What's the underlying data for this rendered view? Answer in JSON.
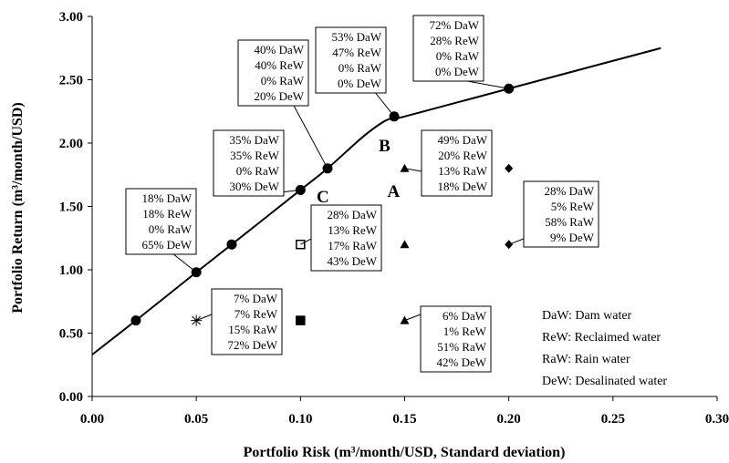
{
  "chart_data": {
    "type": "scatter",
    "xlabel": "Portfolio Risk (m³/month/USD, Standard deviation)",
    "ylabel": "Portfolio Return (m³/month/USD)",
    "xlim": [
      0,
      0.3
    ],
    "ylim": [
      0,
      3.0
    ],
    "x_ticks": [
      "0.00",
      "0.05",
      "0.10",
      "0.15",
      "0.20",
      "0.25",
      "0.30"
    ],
    "y_ticks": [
      "0.00",
      "0.50",
      "1.00",
      "1.50",
      "2.00",
      "2.50",
      "3.00"
    ],
    "frontier_line": {
      "x": [
        0.0,
        0.021,
        0.05,
        0.067,
        0.1,
        0.113,
        0.13,
        0.14,
        0.145,
        0.15,
        0.2,
        0.273
      ],
      "y": [
        0.33,
        0.6,
        0.98,
        1.2,
        1.63,
        1.8,
        2.05,
        2.17,
        2.2,
        2.21,
        2.43,
        2.75
      ]
    },
    "frontier_points": {
      "x": [
        0.021,
        0.05,
        0.067,
        0.1,
        0.113,
        0.145,
        0.2
      ],
      "y": [
        0.6,
        0.98,
        1.2,
        1.63,
        1.8,
        2.21,
        2.43
      ]
    },
    "marker_series": [
      {
        "marker": "square",
        "x": [
          0.1,
          0.1
        ],
        "y": [
          1.2,
          0.6
        ],
        "filled": [
          false,
          true
        ]
      },
      {
        "marker": "triangle",
        "x": [
          0.15,
          0.15,
          0.15
        ],
        "y": [
          1.8,
          1.2,
          0.6
        ]
      },
      {
        "marker": "diamond",
        "x": [
          0.2,
          0.2
        ],
        "y": [
          1.8,
          1.2
        ]
      },
      {
        "marker": "asterisk",
        "x": [
          0.05
        ],
        "y": [
          0.6
        ]
      }
    ],
    "point_labels": [
      {
        "text": "A",
        "x": 0.15,
        "y": 1.8
      },
      {
        "text": "B",
        "x": 0.145,
        "y": 2.21
      },
      {
        "text": "C",
        "x": 0.113,
        "y": 1.8
      }
    ],
    "annotations": [
      {
        "lines": [
          "72% DaW",
          "28% ReW",
          "0% RaW",
          "0% DeW"
        ],
        "target": [
          0.2,
          2.43
        ]
      },
      {
        "lines": [
          "53% DaW",
          "47% ReW",
          "0% RaW",
          "0% DeW"
        ],
        "target": [
          0.145,
          2.21
        ]
      },
      {
        "lines": [
          "40% DaW",
          "40% ReW",
          "0% RaW",
          "20% DeW"
        ],
        "target": [
          0.113,
          1.8
        ]
      },
      {
        "lines": [
          "35% DaW",
          "35% ReW",
          "0% RaW",
          "30% DeW"
        ],
        "target": [
          0.1,
          1.63
        ]
      },
      {
        "lines": [
          "18% DaW",
          "18% ReW",
          "0% RaW",
          "65% DeW"
        ],
        "target": [
          0.05,
          0.98
        ]
      },
      {
        "lines": [
          "49% DaW",
          "20% ReW",
          "13% RaW",
          "18% DeW"
        ],
        "target": [
          0.15,
          1.8
        ]
      },
      {
        "lines": [
          "28% DaW",
          "13% ReW",
          "17% RaW",
          "43% DeW"
        ],
        "target": [
          0.1,
          1.2
        ]
      },
      {
        "lines": [
          "28% DaW",
          "5% ReW",
          "58% RaW",
          "9% DeW"
        ],
        "target": [
          0.2,
          1.2
        ]
      },
      {
        "lines": [
          "7% DaW",
          "7% ReW",
          "15% RaW",
          "72% DeW"
        ],
        "target": [
          0.05,
          0.6
        ]
      },
      {
        "lines": [
          "6% DaW",
          "1% ReW",
          "51% RaW",
          "42% DeW"
        ],
        "target": [
          0.15,
          0.6
        ]
      }
    ],
    "legend": {
      "placement": "bottom-right",
      "items": [
        "DaW: Dam water",
        "ReW: Reclaimed water",
        "RaW: Rain water",
        "DeW: Desalinated water"
      ]
    }
  }
}
